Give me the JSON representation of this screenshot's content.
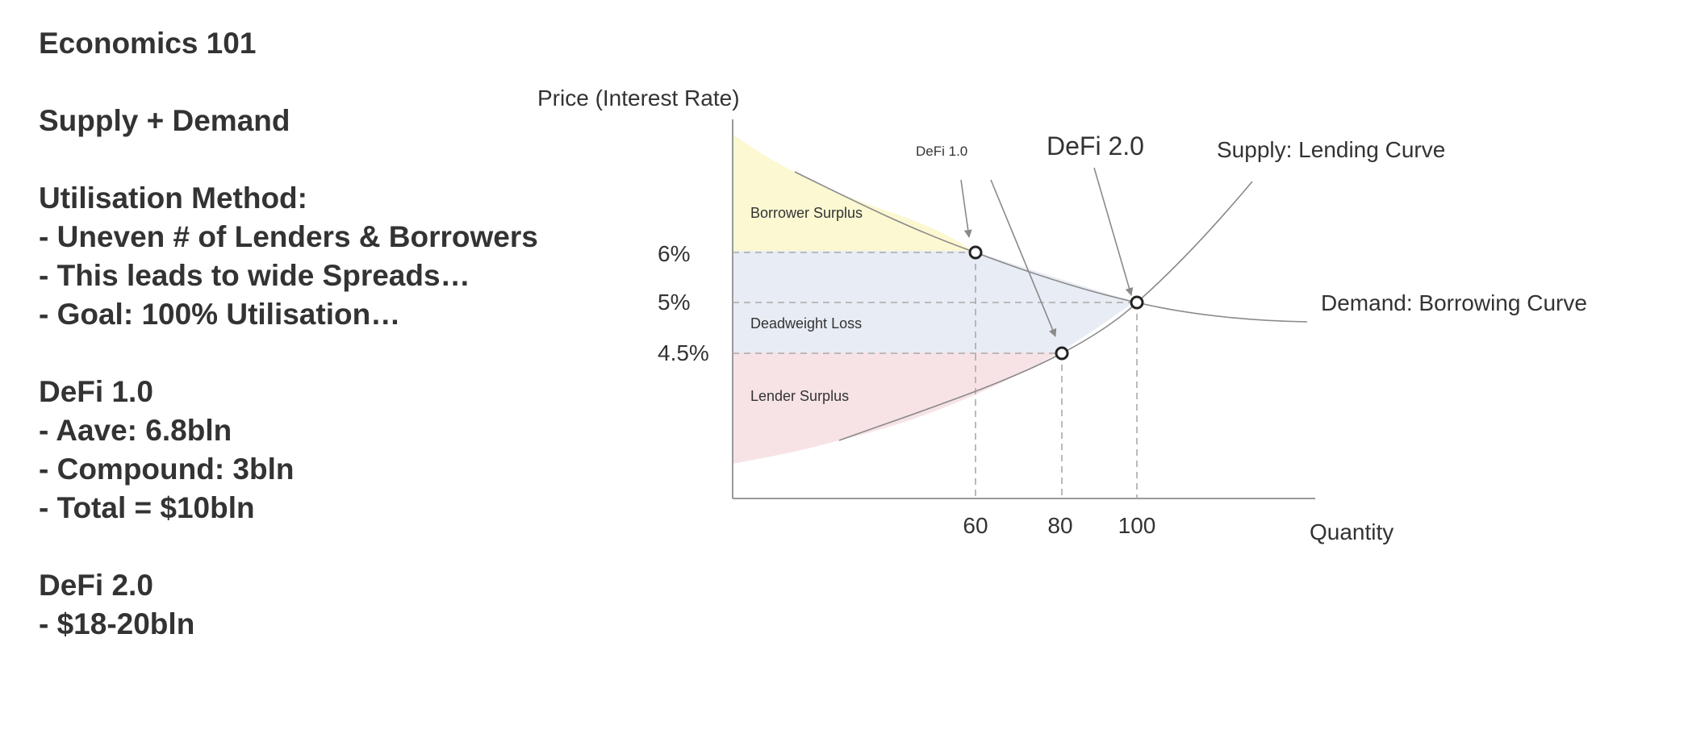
{
  "notes": {
    "title": "Economics 101",
    "subtitle": "Supply + Demand",
    "method_heading": "Utilisation Method:",
    "method_points": [
      "- Uneven # of Lenders & Borrowers",
      "- This leads to wide Spreads…",
      "- Goal: 100% Utilisation…"
    ],
    "defi1_heading": "DeFi 1.0",
    "defi1_points": [
      "- Aave: 6.8bln",
      "- Compound: 3bln",
      "- Total = $10bln"
    ],
    "defi2_heading": "DeFi 2.0",
    "defi2_points": [
      "- $18-20bln"
    ]
  },
  "diagram": {
    "y_axis_label": "Price (Interest Rate)",
    "x_axis_label": "Quantity",
    "x_ticks": [
      "60",
      "80",
      "100"
    ],
    "y_ticks": [
      "6%",
      "5%",
      "4.5%"
    ],
    "supply_label": "Supply: Lending Curve",
    "demand_label": "Demand: Borrowing Curve",
    "defi1_label": "DeFi 1.0",
    "defi2_label": "DeFi 2.0",
    "regions": {
      "borrower_surplus": "Borrower Surplus",
      "deadweight_loss": "Deadweight Loss",
      "lender_surplus": "Lender Surplus"
    },
    "colors": {
      "borrower_surplus": "#fbf8d2",
      "deadweight_loss": "#e8ecf4",
      "lender_surplus": "#f7e3e6",
      "curve": "#8a8a8a",
      "axis": "#999999",
      "guide": "#aaaaaa",
      "point": "#222222"
    }
  }
}
